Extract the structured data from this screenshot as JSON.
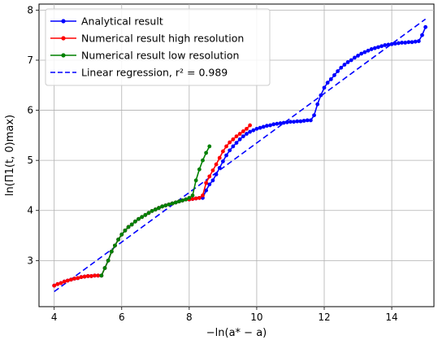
{
  "chart_data": {
    "type": "line",
    "title": "",
    "xlabel": "−ln(a* − a)",
    "ylabel": "ln(Π1(t, 0)max)",
    "xlim": [
      3.55,
      15.25
    ],
    "ylim": [
      2.08,
      8.12
    ],
    "xticks": [
      4,
      6,
      8,
      10,
      12,
      14
    ],
    "yticks": [
      3,
      4,
      5,
      6,
      7,
      8
    ],
    "grid": true,
    "legend_position": "top-left",
    "series": [
      {
        "name": "Analytical result",
        "color": "#0000ff",
        "style": "solid-markers",
        "x": [
          4.0,
          4.1,
          4.2,
          4.3,
          4.4,
          4.5,
          4.6,
          4.7,
          4.8,
          4.9,
          5.0,
          5.1,
          5.2,
          5.3,
          5.4,
          5.5,
          5.6,
          5.7,
          5.8,
          5.9,
          6.0,
          6.1,
          6.2,
          6.3,
          6.4,
          6.5,
          6.6,
          6.7,
          6.8,
          6.9,
          7.0,
          7.1,
          7.2,
          7.3,
          7.4,
          7.5,
          7.6,
          7.7,
          7.8,
          7.9,
          8.0,
          8.1,
          8.2,
          8.3,
          8.4,
          8.5,
          8.6,
          8.7,
          8.8,
          8.9,
          9.0,
          9.1,
          9.2,
          9.3,
          9.4,
          9.5,
          9.6,
          9.7,
          9.8,
          9.9,
          10.0,
          10.1,
          10.2,
          10.3,
          10.4,
          10.5,
          10.6,
          10.7,
          10.8,
          10.9,
          11.0,
          11.1,
          11.2,
          11.3,
          11.4,
          11.5,
          11.6,
          11.7,
          11.8,
          11.9,
          12.0,
          12.1,
          12.2,
          12.3,
          12.4,
          12.5,
          12.6,
          12.7,
          12.8,
          12.9,
          13.0,
          13.1,
          13.2,
          13.3,
          13.4,
          13.5,
          13.6,
          13.7,
          13.8,
          13.9,
          14.0,
          14.1,
          14.2,
          14.3,
          14.4,
          14.5,
          14.6,
          14.7,
          14.8,
          14.9,
          15.0
        ],
        "y": [
          2.5,
          2.53,
          2.55,
          2.58,
          2.6,
          2.62,
          2.64,
          2.65,
          2.67,
          2.68,
          2.69,
          2.69,
          2.7,
          2.7,
          2.7,
          2.85,
          3.0,
          3.18,
          3.3,
          3.42,
          3.52,
          3.6,
          3.67,
          3.72,
          3.78,
          3.83,
          3.87,
          3.91,
          3.95,
          3.99,
          4.02,
          4.05,
          4.08,
          4.1,
          4.12,
          4.14,
          4.16,
          4.18,
          4.2,
          4.22,
          4.22,
          4.23,
          4.24,
          4.25,
          4.25,
          4.4,
          4.52,
          4.6,
          4.72,
          4.85,
          4.98,
          5.1,
          5.2,
          5.28,
          5.35,
          5.42,
          5.48,
          5.53,
          5.57,
          5.6,
          5.63,
          5.65,
          5.67,
          5.69,
          5.7,
          5.72,
          5.73,
          5.74,
          5.75,
          5.76,
          5.77,
          5.77,
          5.78,
          5.78,
          5.79,
          5.8,
          5.8,
          5.9,
          6.12,
          6.3,
          6.45,
          6.55,
          6.62,
          6.7,
          6.78,
          6.85,
          6.91,
          6.96,
          7.0,
          7.05,
          7.09,
          7.13,
          7.16,
          7.19,
          7.22,
          7.24,
          7.26,
          7.28,
          7.3,
          7.31,
          7.32,
          7.33,
          7.34,
          7.35,
          7.35,
          7.36,
          7.36,
          7.37,
          7.38,
          7.5,
          7.66
        ]
      },
      {
        "name": "Numerical result high resolution",
        "color": "#ff0000",
        "style": "solid-markers",
        "x": [
          4.0,
          4.1,
          4.2,
          4.3,
          4.4,
          4.5,
          4.6,
          4.7,
          4.8,
          4.9,
          5.0,
          5.1,
          5.2,
          5.3,
          5.4,
          5.5,
          5.6,
          5.7,
          5.8,
          5.9,
          6.0,
          6.1,
          6.2,
          6.3,
          6.4,
          6.5,
          6.6,
          6.7,
          6.8,
          6.9,
          7.0,
          7.1,
          7.2,
          7.3,
          7.4,
          7.5,
          7.6,
          7.7,
          7.8,
          7.9,
          8.0,
          8.1,
          8.2,
          8.3,
          8.4,
          8.5,
          8.6,
          8.7,
          8.8,
          8.9,
          9.0,
          9.1,
          9.2,
          9.3,
          9.4,
          9.5,
          9.6,
          9.7,
          9.8
        ],
        "y": [
          2.5,
          2.53,
          2.55,
          2.58,
          2.6,
          2.62,
          2.64,
          2.65,
          2.67,
          2.68,
          2.69,
          2.69,
          2.7,
          2.7,
          2.7,
          2.85,
          3.0,
          3.18,
          3.3,
          3.42,
          3.52,
          3.6,
          3.67,
          3.72,
          3.78,
          3.83,
          3.87,
          3.91,
          3.95,
          3.99,
          4.02,
          4.05,
          4.08,
          4.1,
          4.12,
          4.14,
          4.16,
          4.18,
          4.2,
          4.22,
          4.22,
          4.23,
          4.24,
          4.25,
          4.3,
          4.55,
          4.68,
          4.8,
          4.92,
          5.05,
          5.18,
          5.28,
          5.36,
          5.42,
          5.48,
          5.53,
          5.58,
          5.63,
          5.7
        ]
      },
      {
        "name": "Numerical result low resolution",
        "color": "#008000",
        "style": "solid-markers",
        "x": [
          5.4,
          5.5,
          5.6,
          5.7,
          5.8,
          5.9,
          6.0,
          6.1,
          6.2,
          6.3,
          6.4,
          6.5,
          6.6,
          6.7,
          6.8,
          6.9,
          7.0,
          7.1,
          7.2,
          7.3,
          7.4,
          7.5,
          7.6,
          7.7,
          7.8,
          7.9,
          8.0,
          8.1,
          8.2,
          8.3,
          8.4,
          8.5,
          8.6
        ],
        "y": [
          2.7,
          2.85,
          3.0,
          3.18,
          3.3,
          3.42,
          3.52,
          3.6,
          3.67,
          3.72,
          3.78,
          3.83,
          3.87,
          3.91,
          3.95,
          3.99,
          4.02,
          4.05,
          4.08,
          4.1,
          4.12,
          4.14,
          4.16,
          4.18,
          4.2,
          4.22,
          4.25,
          4.3,
          4.6,
          4.82,
          5.0,
          5.15,
          5.28
        ]
      },
      {
        "name": "Linear regression, r² = 0.989",
        "color": "#0000ff",
        "style": "dashed",
        "x": [
          4.0,
          15.0
        ],
        "y": [
          2.38,
          7.82
        ]
      }
    ]
  }
}
